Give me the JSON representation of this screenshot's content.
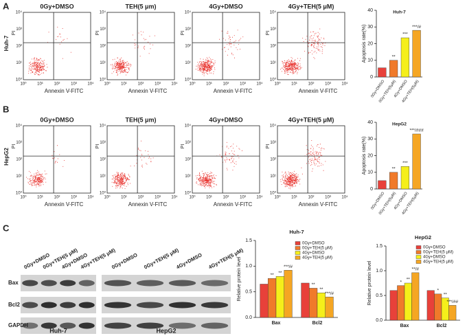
{
  "panels": [
    "A",
    "B",
    "C"
  ],
  "flow": {
    "xlabel": "Annexin V-FITC",
    "ylabel": "PI",
    "ticks": [
      "10⁰",
      "10¹",
      "10²",
      "10³",
      "10⁴"
    ],
    "rows": [
      {
        "cell": "Huh-7",
        "plots": [
          "0Gy+DMSO",
          "TEH(5 μm)",
          "4Gy+DMSO",
          "4Gy+TEH(5 μM)"
        ]
      },
      {
        "cell": "HepG2",
        "plots": [
          "0Gy+DMSO",
          "TEH(5 μm)",
          "4Gy+DMSO",
          "4Gy+TEH(5 μM)"
        ]
      }
    ]
  },
  "blot": {
    "lanes": [
      "0Gy+DMSO",
      "0Gy+TEH(5 μM)",
      "4Gy+DMSO",
      "4Gy+TEH(5 μM)"
    ],
    "proteins": [
      "Bax",
      "Bcl2",
      "GAPDH"
    ],
    "groups": [
      "Huh-7",
      "HepG2"
    ]
  },
  "chart_data": [
    {
      "type": "bar",
      "title": "Huh-7",
      "ylabel": "Apoptosis rate(%)",
      "categories": [
        "0Gy+DMSO",
        "0Gy+TEH(5μM)",
        "4Gy+DMSO",
        "4Gy+TEH(5μM)"
      ],
      "values": [
        5.5,
        10,
        23.5,
        28
      ],
      "colors": [
        "#e8413a",
        "#f07a2a",
        "#f5ef1a",
        "#f5a623"
      ],
      "annotations": [
        null,
        "**",
        "***",
        "***/#"
      ],
      "ylim": [
        0,
        40
      ],
      "yticks": [
        0,
        10,
        20,
        30,
        40
      ]
    },
    {
      "type": "bar",
      "title": "HepG2",
      "ylabel": "Apoptosis rate(%)",
      "categories": [
        "0Gy+DMSO",
        "0Gy+TEH(5μM)",
        "4Gy+DMSO",
        "4Gy+TEH(5μM)"
      ],
      "values": [
        5,
        10,
        13.5,
        33
      ],
      "colors": [
        "#e8413a",
        "#f07a2a",
        "#f5ef1a",
        "#f5a623"
      ],
      "annotations": [
        null,
        "**",
        "***",
        "***/###"
      ],
      "ylim": [
        0,
        40
      ],
      "yticks": [
        0,
        10,
        20,
        30,
        40
      ]
    },
    {
      "type": "grouped_bar",
      "title": "Huh-7",
      "ylabel": "Relative protein level",
      "categories": [
        "Bax",
        "Bcl2"
      ],
      "series": [
        {
          "name": "0Gy+DMSO",
          "color": "#e8413a",
          "values": [
            0.65,
            0.67
          ],
          "annotations": [
            null,
            null
          ]
        },
        {
          "name": "0Gy+TEH(5 μM)",
          "color": "#f07a2a",
          "values": [
            0.76,
            0.57
          ],
          "annotations": [
            "**",
            "**"
          ]
        },
        {
          "name": "4Gy+DMSO",
          "color": "#f5ef1a",
          "values": [
            0.8,
            0.48
          ],
          "annotations": [
            "**",
            "**"
          ]
        },
        {
          "name": "4Gy+TEH(5 μM)",
          "color": "#f5a623",
          "values": [
            0.92,
            0.4
          ],
          "annotations": [
            "***/#",
            "***/#"
          ]
        }
      ],
      "ylim": [
        0,
        1.5
      ],
      "yticks": [
        {
          "value": 0,
          "label": "0.0"
        },
        {
          "value": 0.5,
          "label": "0.5"
        },
        {
          "value": 1,
          "label": "1.0"
        },
        {
          "value": 1.5,
          "label": "1.5"
        }
      ]
    },
    {
      "type": "grouped_bar",
      "title": "HepG2",
      "ylabel": "Relative protein level",
      "categories": [
        "Bax",
        "Bcl2"
      ],
      "series": [
        {
          "name": "0Gy+DMSO",
          "color": "#e8413a",
          "values": [
            0.6,
            0.6
          ],
          "annotations": [
            null,
            null
          ]
        },
        {
          "name": "0Gy+TEH(5 μM)",
          "color": "#f07a2a",
          "values": [
            0.7,
            0.53
          ],
          "annotations": [
            "*",
            "*"
          ]
        },
        {
          "name": "4Gy+DMSO",
          "color": "#f5ef1a",
          "values": [
            0.75,
            0.45
          ],
          "annotations": [
            "**",
            "**"
          ]
        },
        {
          "name": "4Gy+TEH(5 μM)",
          "color": "#f5a623",
          "values": [
            0.96,
            0.3
          ],
          "annotations": [
            "**/#",
            "***/##"
          ]
        }
      ],
      "ylim": [
        0,
        1.5
      ],
      "yticks": [
        {
          "value": 0,
          "label": "0.0"
        },
        {
          "value": 0.5,
          "label": "0.5"
        },
        {
          "value": 1,
          "label": "1.0"
        },
        {
          "value": 1.5,
          "label": "1.5"
        }
      ]
    }
  ]
}
